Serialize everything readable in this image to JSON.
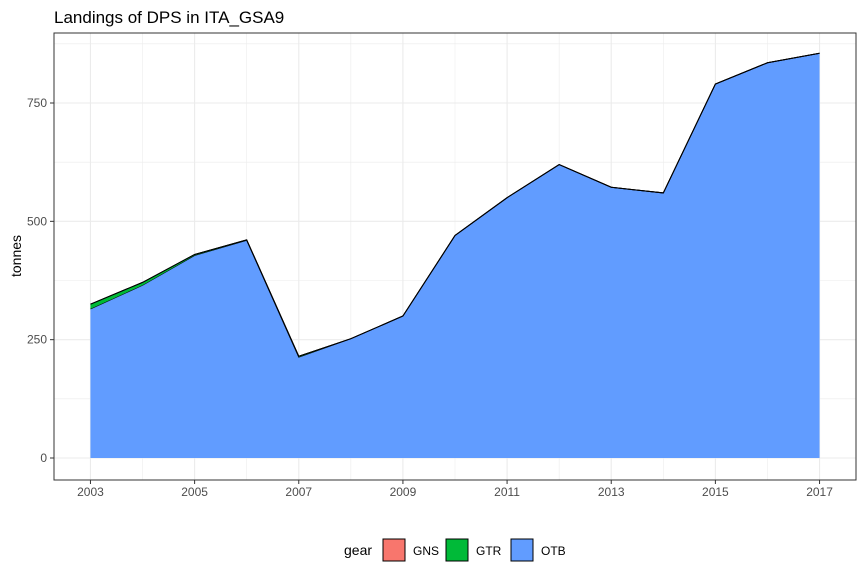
{
  "chart_data": {
    "type": "area",
    "stacked": true,
    "title": "Landings of DPS in ITA_GSA9",
    "xlabel": "",
    "ylabel": "tonnes",
    "xlim": [
      2003,
      2017
    ],
    "ylim": [
      0,
      880
    ],
    "x_ticks": [
      2003,
      2005,
      2007,
      2009,
      2011,
      2013,
      2015,
      2017
    ],
    "y_ticks": [
      0,
      250,
      500,
      750
    ],
    "x_tick_labels": [
      "2003",
      "2005",
      "2007",
      "2009",
      "2011",
      "2013",
      "2015",
      "2017"
    ],
    "y_tick_labels": [
      "0",
      "250",
      "500",
      "750"
    ],
    "x": [
      2003,
      2004,
      2005,
      2006,
      2007,
      2008,
      2009,
      2010,
      2011,
      2012,
      2013,
      2014,
      2015,
      2016,
      2017
    ],
    "series": [
      {
        "name": "OTB",
        "color": "#619CFF",
        "values": [
          315,
          365,
          428,
          460,
          213,
          252,
          300,
          470,
          550,
          620,
          572,
          560,
          790,
          835,
          855
        ]
      },
      {
        "name": "GTR",
        "color": "#00BA38",
        "values": [
          10,
          6,
          2,
          1,
          2,
          0,
          0,
          0,
          0,
          0,
          0,
          0,
          0,
          0,
          0
        ]
      },
      {
        "name": "GNS",
        "color": "#F8766D",
        "values": [
          0,
          0,
          0,
          0,
          0,
          0,
          0,
          0,
          0,
          0,
          0,
          0,
          0,
          0,
          0
        ]
      }
    ],
    "legend": {
      "title": "gear",
      "position": "bottom",
      "items": [
        "GNS",
        "GTR",
        "OTB"
      ]
    },
    "grid": true,
    "panel_border": true
  }
}
